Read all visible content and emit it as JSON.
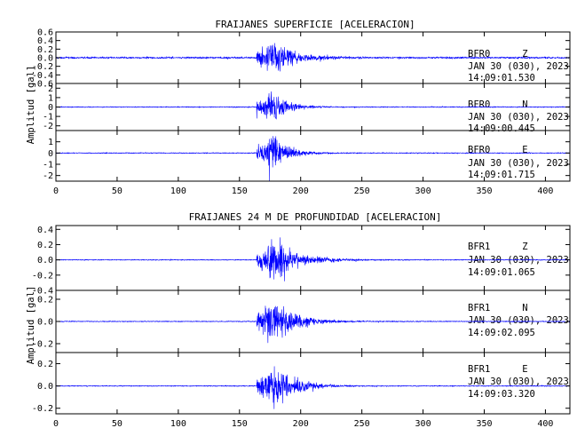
{
  "colors": {
    "trace": "#0000ff",
    "axes": "#000000",
    "background": "#ffffff"
  },
  "chart_data": [
    {
      "type": "line",
      "title": "FRAIJANES SUPERFICIE [ACELERACION]",
      "ylabel": "Amplitud [gal]",
      "xlim": [
        0,
        420
      ],
      "x_ticks": [
        "0",
        "50",
        "100",
        "150",
        "200",
        "250",
        "300",
        "350",
        "400"
      ],
      "grid": false,
      "series": [
        {
          "name": "BFR0 Z",
          "station": "BFR0",
          "component": "Z",
          "date": "JAN 30 (030), 2023",
          "time": "14:09:01.530",
          "ylim": [
            -0.6,
            0.6
          ],
          "y_ticks": [
            "0.6",
            "0.4",
            "0.2",
            "0.0",
            "-0.2",
            "-0.4",
            "-0.6"
          ],
          "envelope": {
            "noise": 0.03,
            "onset": 164,
            "peak": 0.55,
            "peak_time": 178,
            "decay": 15
          }
        },
        {
          "name": "BFR0 N",
          "station": "BFR0",
          "component": "N",
          "date": "JAN 30 (030), 2023",
          "time": "14:09:00.445",
          "ylim": [
            -2.5,
            2.5
          ],
          "y_ticks": [
            "2",
            "1",
            "0",
            "-1",
            "-2"
          ],
          "envelope": {
            "noise": 0.07,
            "onset": 164,
            "peak": 2.3,
            "peak_time": 177,
            "decay": 12
          }
        },
        {
          "name": "BFR0 E",
          "station": "BFR0",
          "component": "E",
          "date": "JAN 30 (030), 2023",
          "time": "14:09:01.715",
          "ylim": [
            -2.5,
            2.0
          ],
          "y_ticks": [
            "1",
            "0",
            "-1",
            "-2"
          ],
          "envelope": {
            "noise": 0.06,
            "onset": 164,
            "peak": 2.2,
            "peak_time": 177,
            "decay": 12
          }
        }
      ]
    },
    {
      "type": "line",
      "title": "FRAIJANES 24 M DE PROFUNDIDAD [ACELERACION]",
      "ylabel": "Amplitud [gal]",
      "xlim": [
        0,
        420
      ],
      "x_ticks": [
        "0",
        "50",
        "100",
        "150",
        "200",
        "250",
        "300",
        "350",
        "400"
      ],
      "grid": false,
      "series": [
        {
          "name": "BFR1 Z",
          "station": "BFR1",
          "component": "Z",
          "date": "JAN 30 (030), 2023",
          "time": "14:09:01.065",
          "ylim": [
            -0.4,
            0.45
          ],
          "y_ticks": [
            "0.4",
            "0.2",
            "0.0",
            "-0.2",
            "-0.4"
          ],
          "envelope": {
            "noise": 0.008,
            "onset": 164,
            "peak": 0.38,
            "peak_time": 180,
            "decay": 18
          }
        },
        {
          "name": "BFR1 N",
          "station": "BFR1",
          "component": "N",
          "date": "JAN 30 (030), 2023",
          "time": "14:09:02.095",
          "ylim": [
            -0.28,
            0.28
          ],
          "y_ticks": [
            "0.2",
            "0.0",
            "-0.2"
          ],
          "envelope": {
            "noise": 0.006,
            "onset": 164,
            "peak": 0.27,
            "peak_time": 179,
            "decay": 16
          }
        },
        {
          "name": "BFR1 E",
          "station": "BFR1",
          "component": "E",
          "date": "JAN 30 (030), 2023",
          "time": "14:09:03.320",
          "ylim": [
            -0.25,
            0.3
          ],
          "y_ticks": [
            "0.2",
            "0.0",
            "-0.2"
          ],
          "envelope": {
            "noise": 0.006,
            "onset": 164,
            "peak": 0.25,
            "peak_time": 180,
            "decay": 16
          }
        }
      ]
    }
  ]
}
